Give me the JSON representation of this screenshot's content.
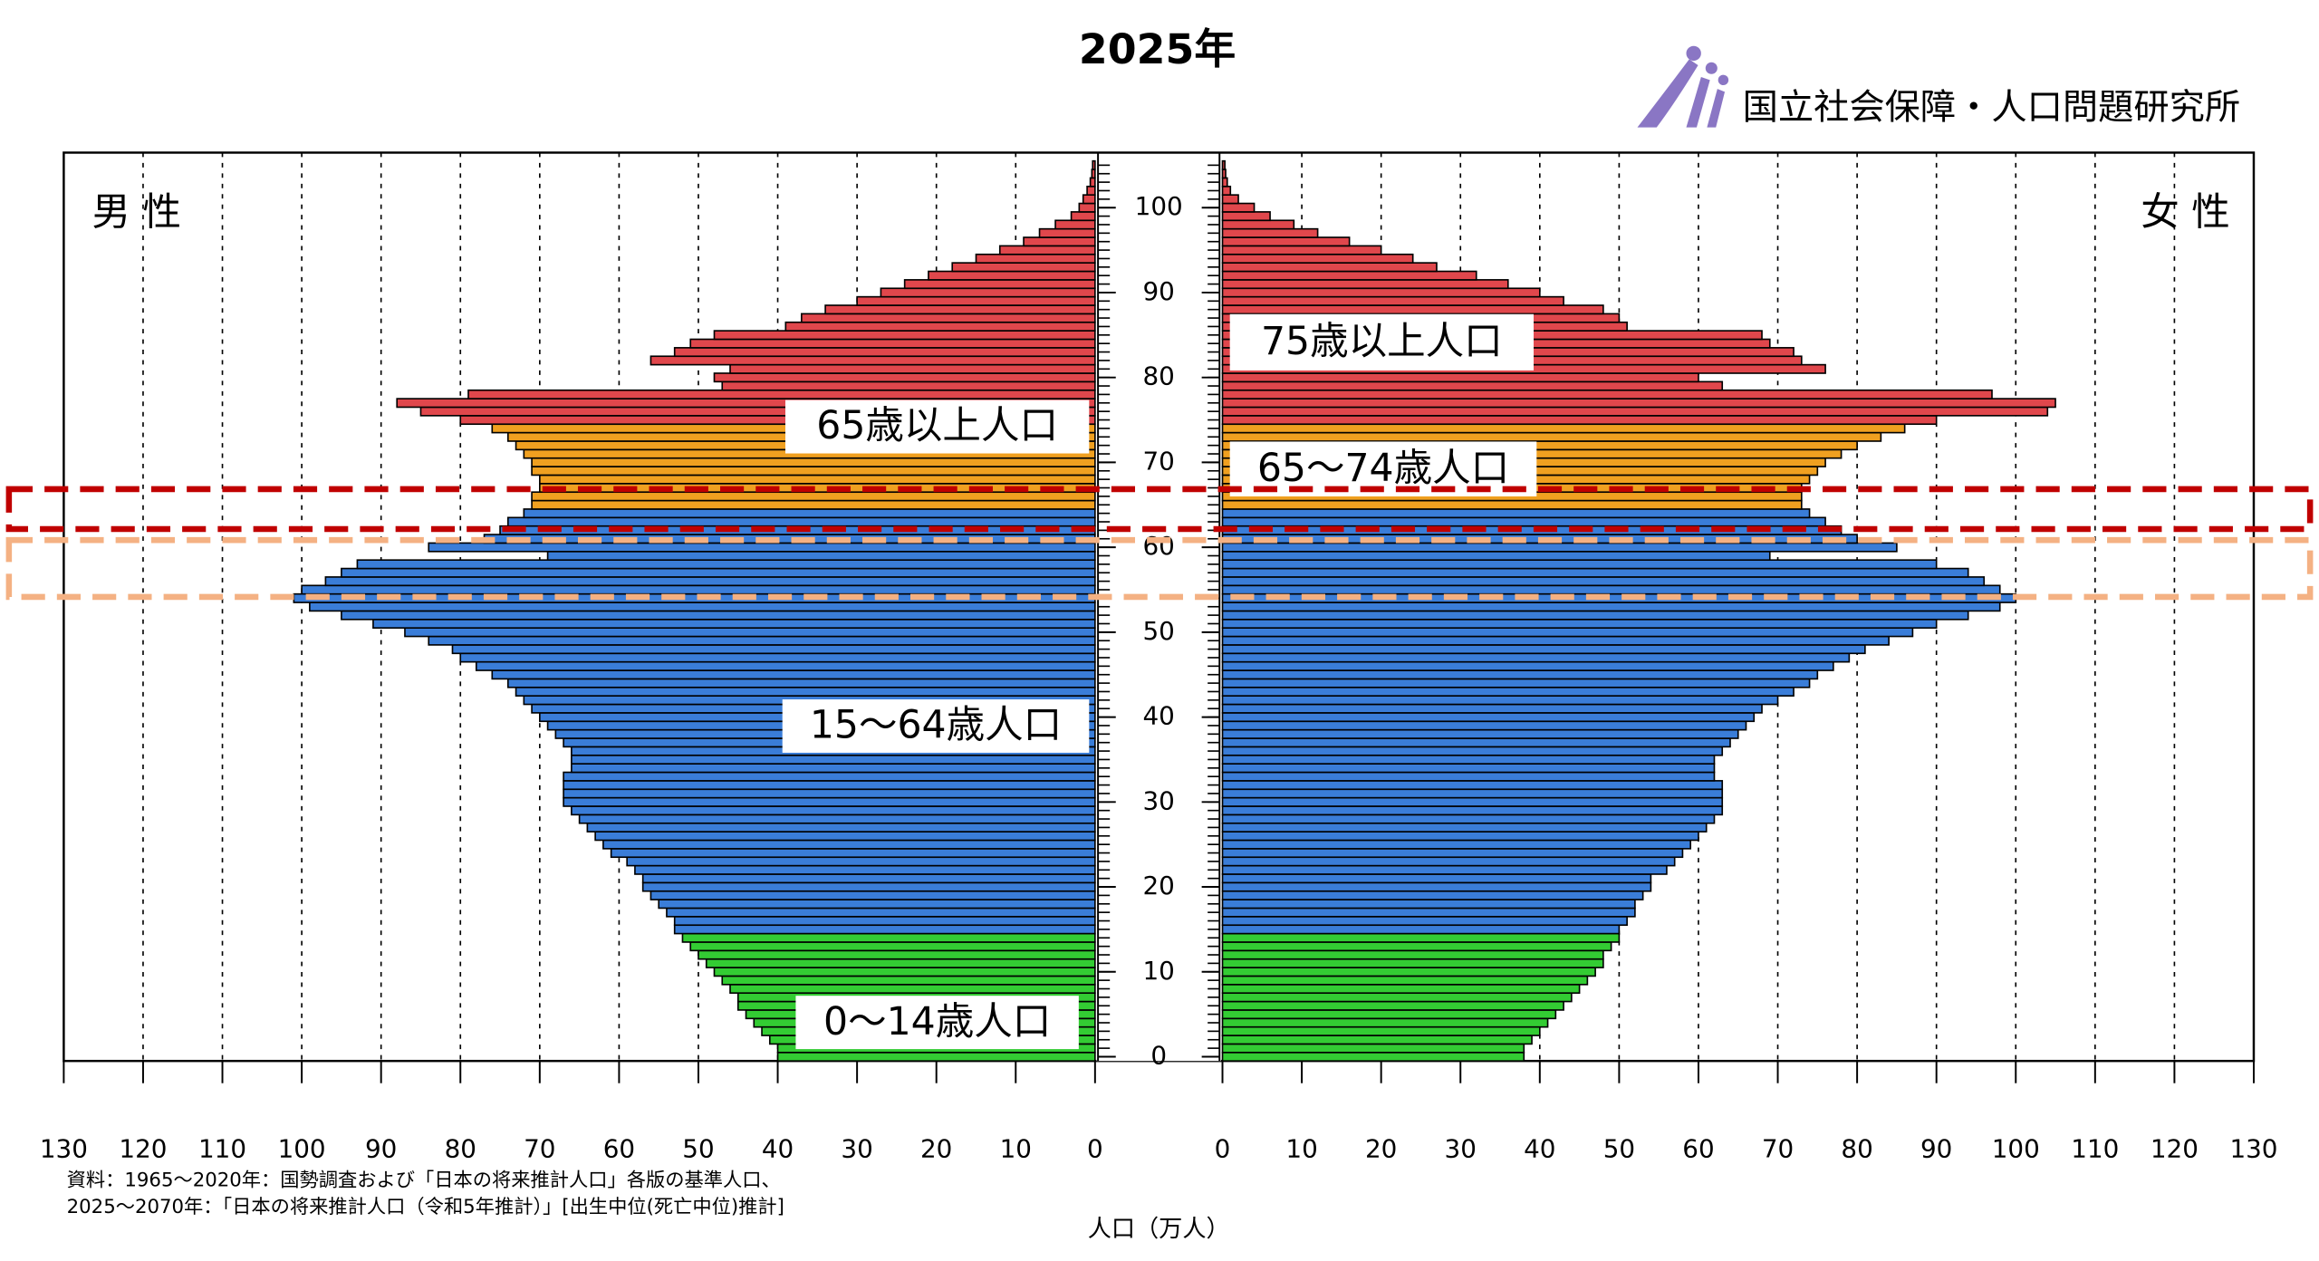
{
  "chart_data": {
    "type": "pyramid",
    "title": "2025年",
    "left_label": "男 性",
    "right_label": "女 性",
    "x_label": "人口（万人）",
    "source": [
      "資料：1965～2020年：国勢調査および「日本の将来推計人口」各版の基準人口、",
      "2025～2070年：「日本の将来推計人口（令和5年推計）」[出生中位(死亡中位)推計]"
    ],
    "logo_text": "国立社会保障・人口問題研究所",
    "categories": [
      0,
      1,
      2,
      3,
      4,
      5,
      6,
      7,
      8,
      9,
      10,
      11,
      12,
      13,
      14,
      15,
      16,
      17,
      18,
      19,
      20,
      21,
      22,
      23,
      24,
      25,
      26,
      27,
      28,
      29,
      30,
      31,
      32,
      33,
      34,
      35,
      36,
      37,
      38,
      39,
      40,
      41,
      42,
      43,
      44,
      45,
      46,
      47,
      48,
      49,
      50,
      51,
      52,
      53,
      54,
      55,
      56,
      57,
      58,
      59,
      60,
      61,
      62,
      63,
      64,
      65,
      66,
      67,
      68,
      69,
      70,
      71,
      72,
      73,
      74,
      75,
      76,
      77,
      78,
      79,
      80,
      81,
      82,
      83,
      84,
      85,
      86,
      87,
      88,
      89,
      90,
      91,
      92,
      93,
      94,
      95,
      96,
      97,
      98,
      99,
      100,
      101,
      102,
      103,
      104,
      105
    ],
    "series": [
      {
        "side": "left",
        "values": [
          40,
          40,
          41,
          42,
          43,
          44,
          45,
          45,
          46,
          47,
          48,
          49,
          50,
          51,
          52,
          53,
          53,
          54,
          55,
          56,
          57,
          57,
          58,
          59,
          61,
          62,
          63,
          64,
          65,
          66,
          67,
          67,
          67,
          67,
          66,
          66,
          66,
          67,
          68,
          69,
          70,
          71,
          72,
          73,
          74,
          76,
          78,
          80,
          81,
          84,
          87,
          91,
          95,
          99,
          101,
          100,
          97,
          95,
          93,
          69,
          84,
          77,
          75,
          74,
          72,
          71,
          71,
          70,
          70,
          71,
          71,
          72,
          73,
          74,
          76,
          80,
          85,
          88,
          79,
          47,
          48,
          46,
          56,
          53,
          51,
          48,
          39,
          37,
          34,
          30,
          27,
          24,
          21,
          18,
          15,
          12,
          9,
          7,
          5,
          3,
          2,
          1.5,
          1,
          0.6,
          0.4,
          0.3
        ]
      },
      {
        "side": "right",
        "values": [
          38,
          38,
          39,
          40,
          41,
          42,
          43,
          44,
          45,
          46,
          47,
          48,
          48,
          49,
          50,
          50,
          51,
          52,
          52,
          53,
          54,
          54,
          56,
          57,
          58,
          59,
          60,
          61,
          62,
          63,
          63,
          63,
          63,
          62,
          62,
          62,
          63,
          64,
          65,
          66,
          67,
          68,
          70,
          72,
          74,
          75,
          77,
          79,
          81,
          84,
          87,
          90,
          94,
          98,
          100,
          98,
          96,
          94,
          90,
          69,
          85,
          80,
          78,
          76,
          74,
          73,
          73,
          73,
          74,
          75,
          76,
          78,
          80,
          83,
          86,
          90,
          104,
          105,
          97,
          63,
          60,
          76,
          73,
          72,
          69,
          68,
          51,
          50,
          48,
          43,
          40,
          36,
          32,
          27,
          24,
          20,
          16,
          12,
          9,
          6,
          4,
          2,
          1,
          0.6,
          0.4,
          0.3
        ]
      }
    ],
    "age_groups": [
      {
        "from": 0,
        "to": 14,
        "color": "#33cc33"
      },
      {
        "from": 15,
        "to": 64,
        "color": "#3a7dd8"
      },
      {
        "from": 65,
        "to": 74,
        "color": "#f0a020"
      },
      {
        "from": 75,
        "to": 105,
        "color": "#e0474c"
      }
    ],
    "annotations": [
      "75歳以上人口",
      "65～74歳人口",
      "65歳以上人口",
      "15～64歳人口",
      "0～14歳人口"
    ],
    "highlights": [
      {
        "from": 63,
        "to": 66,
        "color": "#c00000"
      },
      {
        "from": 55,
        "to": 60,
        "color": "#f4b183"
      }
    ],
    "xlim": [
      0,
      130
    ],
    "xticks": [
      0,
      10,
      20,
      30,
      40,
      50,
      60,
      70,
      80,
      90,
      100,
      110,
      120,
      130
    ],
    "ylim": [
      0,
      105
    ],
    "yticks": [
      0,
      10,
      20,
      30,
      40,
      50,
      60,
      70,
      80,
      90,
      100
    ],
    "grid": true
  }
}
